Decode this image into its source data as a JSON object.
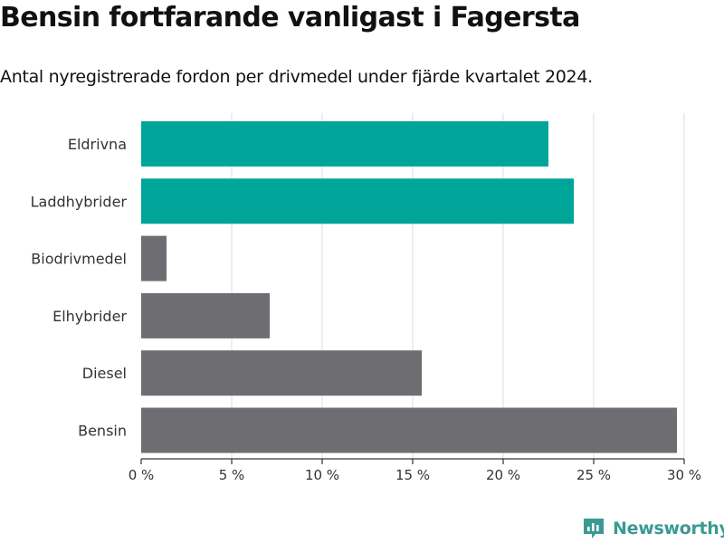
{
  "header": {
    "title": "Bensin fortfarande vanligast i Fagersta",
    "subtitle": "Antal nyregistrerade fordon per drivmedel under fjärde kvartalet 2024."
  },
  "brand": {
    "name": "Newsworthy",
    "icon": "newsworthy-logo-icon",
    "color": "#3a9a92"
  },
  "colors": {
    "highlight": "#00a59a",
    "default": "#6e6d72",
    "grid": "#dddddd",
    "axis": "#333333"
  },
  "chart_data": {
    "type": "bar",
    "orientation": "horizontal",
    "title": "Bensin fortfarande vanligast i Fagersta",
    "subtitle": "Antal nyregistrerade fordon per drivmedel under fjärde kvartalet 2024.",
    "xlabel": "",
    "ylabel": "",
    "categories": [
      "Eldrivna",
      "Laddhybrider",
      "Biodrivmedel",
      "Elhybrider",
      "Diesel",
      "Bensin"
    ],
    "values": [
      22.5,
      23.9,
      1.4,
      7.1,
      15.5,
      29.6
    ],
    "highlighted": [
      true,
      true,
      false,
      false,
      false,
      false
    ],
    "xlim": [
      0,
      30
    ],
    "xticks": [
      0,
      5,
      10,
      15,
      20,
      25,
      30
    ],
    "xtick_labels": [
      "0 %",
      "5 %",
      "10 %",
      "15 %",
      "20 %",
      "25 %",
      "30 %"
    ],
    "grid": "vertical",
    "legend": "none"
  }
}
